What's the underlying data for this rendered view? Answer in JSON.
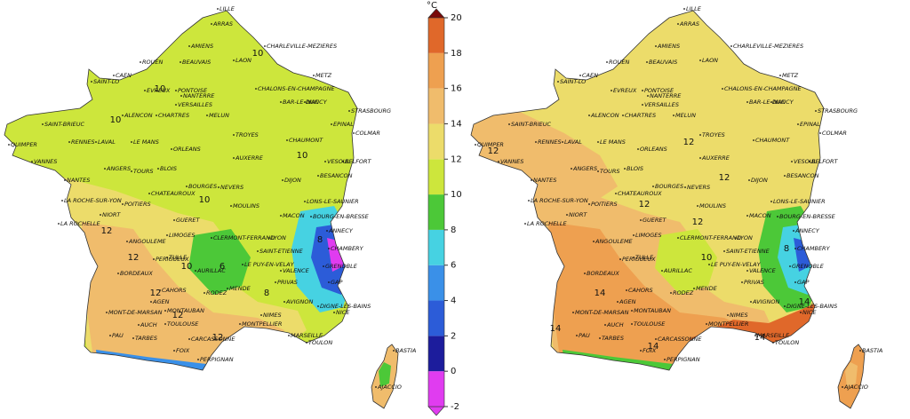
{
  "colorbar": {
    "unit": "°C",
    "ticks": [
      -2,
      0,
      2,
      4,
      6,
      8,
      10,
      12,
      14,
      16,
      18,
      20
    ],
    "colors": [
      "#e03cf0",
      "#1c1c9c",
      "#2c5cd8",
      "#3a90e8",
      "#46d2e2",
      "#4cc838",
      "#cde63c",
      "#ecdc6a",
      "#f0bc6c",
      "#eea050",
      "#e0682a",
      "#c0301a"
    ],
    "under_color": "#e03cf0",
    "over_color": "#7a0a0a"
  },
  "cities": [
    "LILLE",
    "ARRAS",
    "AMIENS",
    "CHARLEVILLE-MEZIERES",
    "ROUEN",
    "BEAUVAIS",
    "LAON",
    "CAEN",
    "METZ",
    "SAINT-LO",
    "EVREUX",
    "PONTOISE",
    "CHALONS-EN-CHAMPAGNE",
    "NANCY",
    "BAR-LE-DUC",
    "STRASBOURG",
    "ALENCON",
    "CHARTRES",
    "MELUN",
    "EPINAL",
    "COLMAR",
    "SAINT-BRIEUC",
    "RENNES",
    "LAVAL",
    "LE MANS",
    "TROYES",
    "CHAUMONT",
    "QUIMPER",
    "VANNES",
    "ORLEANS",
    "AUXERRE",
    "ANGERS",
    "BLOIS",
    "TOURS",
    "VESOUL",
    "BELFORT",
    "NANTES",
    "DIJON",
    "BESANCON",
    "CHATEAUROUX",
    "BOURGES",
    "NEVERS",
    "LA ROCHE-SUR-YON",
    "POITIERS",
    "MOULINS",
    "LONS-LE-SAUNIER",
    "MACON",
    "NIORT",
    "GUERET",
    "BOURG-EN-BRESSE",
    "LA ROCHELLE",
    "LIMOGES",
    "CLERMONT-FERRAND",
    "LYON",
    "ANNECY",
    "ANGOULEME",
    "CHAMBERY",
    "SAINT-ETIENNE",
    "PERIGUEUX",
    "TULLE",
    "GRENOBLE",
    "LE PUY-EN-VELAY",
    "BORDEAUX",
    "AURILLAC",
    "VALENCE",
    "PRIVAS",
    "MENDE",
    "CAHORS",
    "RODEZ",
    "GAP",
    "DIGNE-LES-BAINS",
    "AGEN",
    "MONTAUBAN",
    "NIMES",
    "AVIGNON",
    "MONT-DE-MARSAN",
    "TOULOUSE",
    "MONTPELLIER",
    "NICE",
    "AUCH",
    "MARSEILLE",
    "TOULON",
    "PAU",
    "TARBES",
    "CARCASSONNE",
    "FOIX",
    "PERPIGNAN",
    "BASTIA",
    "AJACCIO",
    "VERSAILLES",
    "NANTERRE"
  ],
  "maps": [
    {
      "contour_labels": [
        10,
        10,
        10,
        10,
        10,
        12,
        12,
        12,
        12,
        8,
        6,
        8,
        10,
        12
      ]
    },
    {
      "contour_labels": [
        12,
        12,
        12,
        14,
        14,
        14,
        12,
        10,
        8,
        14,
        14,
        12
      ]
    }
  ]
}
